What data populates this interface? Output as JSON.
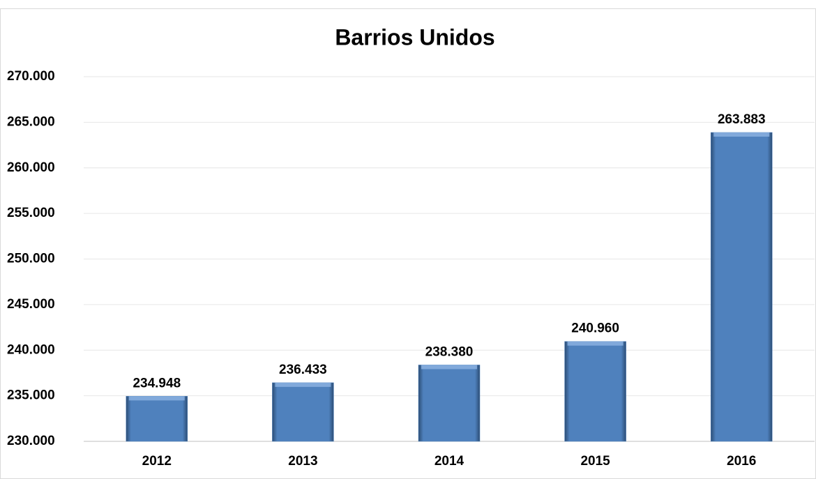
{
  "chart_data": {
    "type": "bar",
    "title": "Barrios Unidos",
    "categories": [
      "2012",
      "2013",
      "2014",
      "2015",
      "2016"
    ],
    "values": [
      234948,
      236433,
      238380,
      240960,
      263883
    ],
    "value_labels": [
      "234.948",
      "236.433",
      "238.380",
      "240.960",
      "263.883"
    ],
    "color": "#4f81bd",
    "ylim": [
      230000,
      270000
    ],
    "yticks": [
      {
        "value": 230000,
        "label": "230.000"
      },
      {
        "value": 235000,
        "label": "235.000"
      },
      {
        "value": 240000,
        "label": "240.000"
      },
      {
        "value": 245000,
        "label": "245.000"
      },
      {
        "value": 250000,
        "label": "250.000"
      },
      {
        "value": 255000,
        "label": "255.000"
      },
      {
        "value": 260000,
        "label": "260.000"
      },
      {
        "value": 265000,
        "label": "265.000"
      },
      {
        "value": 270000,
        "label": "270.000"
      }
    ],
    "grid": true
  }
}
